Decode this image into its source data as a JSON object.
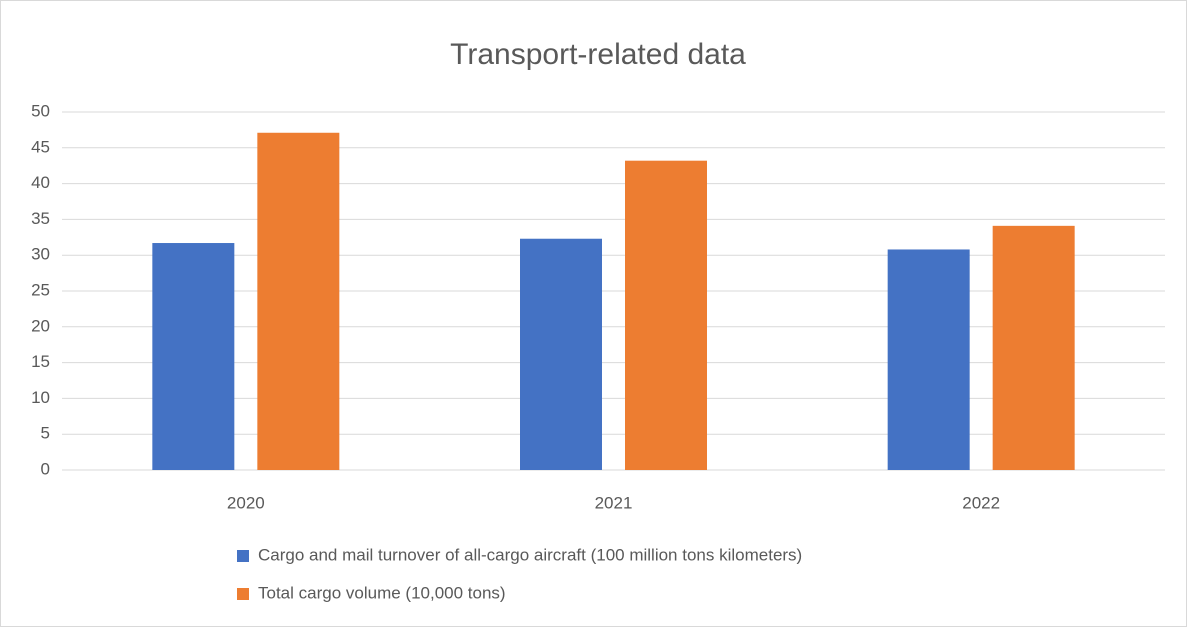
{
  "chart_data": {
    "type": "bar",
    "title": "Transport-related data",
    "categories": [
      "2020",
      "2021",
      "2022"
    ],
    "series": [
      {
        "name": "Cargo and mail turnover of all-cargo aircraft (100 million tons kilometers)",
        "color": "#4472c4",
        "values": [
          31.7,
          32.3,
          30.8
        ]
      },
      {
        "name": "Total cargo volume (10,000 tons)",
        "color": "#ed7d31",
        "values": [
          47.1,
          43.2,
          34.1
        ]
      }
    ],
    "ylim": [
      0,
      50
    ],
    "yticks": [
      0,
      5,
      10,
      15,
      20,
      25,
      30,
      35,
      40,
      45,
      50
    ],
    "grid": true,
    "legend": "bottom"
  }
}
